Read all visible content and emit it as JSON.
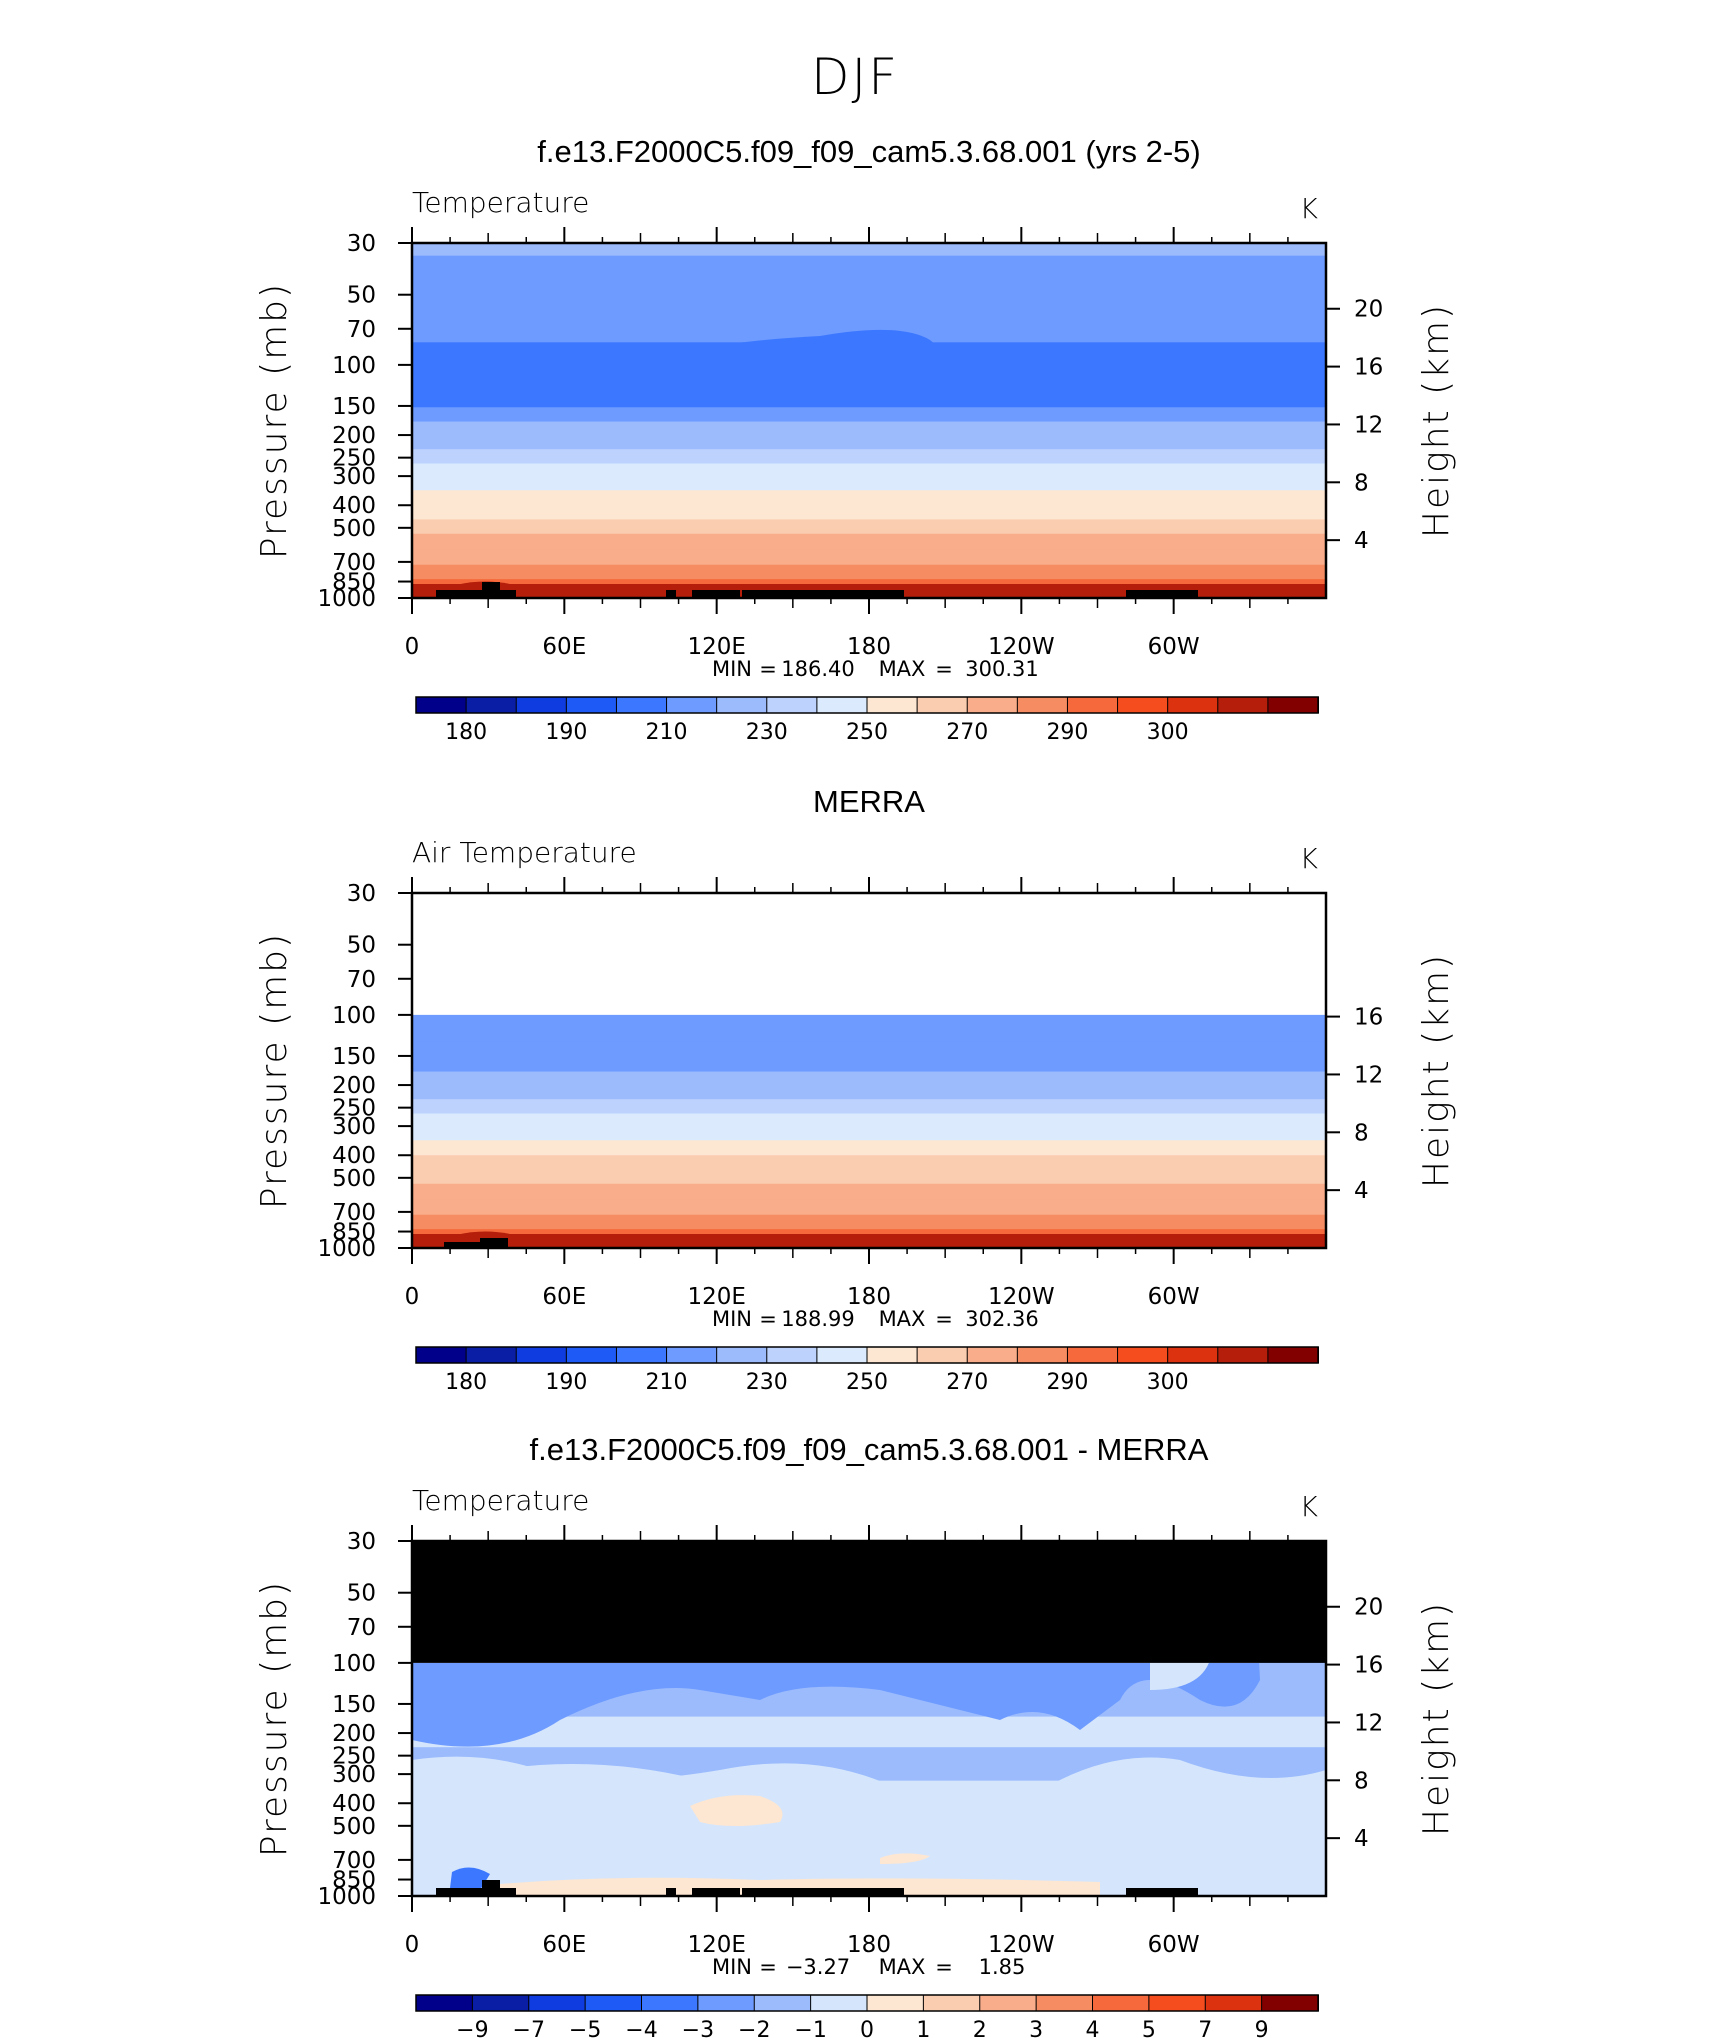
{
  "figure_title": "DJF",
  "colors": {
    "temp_palette": [
      "#00008b",
      "#0a1ea5",
      "#0f3ce0",
      "#1e5af5",
      "#3c78ff",
      "#6e9bff",
      "#9bbbfd",
      "#bdd2fd",
      "#dbebfd",
      "#fde6d2",
      "#fbcdb0",
      "#f9ad8a",
      "#f58c62",
      "#f5693c",
      "#f54d1e",
      "#dc320f",
      "#b41e0a",
      "#820000"
    ],
    "land_mask": "#000000"
  },
  "chart_data": [
    {
      "type": "heatmap",
      "title": "f.e13.F2000C5.f09_f09_cam5.3.68.001 (yrs 2-5)",
      "subtitle_left": "Temperature",
      "subtitle_right": "K",
      "xlabel": "",
      "ylabel": "Pressure (mb)",
      "ylabel_right": "Height (km)",
      "x_ticks": [
        "0",
        "60E",
        "120E",
        "180",
        "120W",
        "60W"
      ],
      "y_ticks": [
        30,
        50,
        70,
        100,
        150,
        200,
        250,
        300,
        400,
        500,
        700,
        850,
        1000
      ],
      "y_ticks_right": [
        4,
        8,
        12,
        16,
        20
      ],
      "y_scale": "log-pressure",
      "stats": {
        "min_label": "MIN",
        "min": "186.40",
        "max_label": "MAX",
        "max": "300.31"
      },
      "colorbar": {
        "labels": [
          "180",
          "190",
          "210",
          "230",
          "250",
          "270",
          "290",
          "300"
        ]
      },
      "bands": [
        {
          "p": 30,
          "v": 212
        },
        {
          "p": 34,
          "v": 207
        },
        {
          "p": 48,
          "v": 203
        },
        {
          "p": 80,
          "v": 199
        },
        {
          "p": 100,
          "v": 199
        },
        {
          "p": 140,
          "v": 199
        },
        {
          "p": 152,
          "v": 208
        },
        {
          "p": 175,
          "v": 212
        },
        {
          "p": 200,
          "v": 218
        },
        {
          "p": 230,
          "v": 224
        },
        {
          "p": 265,
          "v": 230
        },
        {
          "p": 300,
          "v": 236
        },
        {
          "p": 345,
          "v": 243
        },
        {
          "p": 400,
          "v": 249
        },
        {
          "p": 460,
          "v": 256
        },
        {
          "p": 530,
          "v": 262
        },
        {
          "p": 620,
          "v": 268
        },
        {
          "p": 720,
          "v": 274
        },
        {
          "p": 830,
          "v": 280
        },
        {
          "p": 930,
          "v": 287
        },
        {
          "p": 1000,
          "v": 295
        }
      ]
    },
    {
      "type": "heatmap",
      "title": "MERRA",
      "subtitle_left": "Air Temperature",
      "subtitle_right": "K",
      "xlabel": "",
      "ylabel": "Pressure (mb)",
      "ylabel_right": "Height (km)",
      "x_ticks": [
        "0",
        "60E",
        "120E",
        "180",
        "120W",
        "60W"
      ],
      "y_ticks": [
        30,
        50,
        70,
        100,
        150,
        200,
        250,
        300,
        400,
        500,
        700,
        850,
        1000
      ],
      "y_ticks_right": [
        4,
        8,
        12,
        16
      ],
      "y_scale": "log-pressure",
      "data_top_pressure": 100,
      "stats": {
        "min_label": "MIN",
        "min": "188.99",
        "max_label": "MAX",
        "max": "302.36"
      },
      "colorbar": {
        "labels": [
          "180",
          "190",
          "210",
          "230",
          "250",
          "270",
          "290",
          "300"
        ]
      },
      "bands": [
        {
          "p": 100,
          "v": 202
        },
        {
          "p": 130,
          "v": 205
        },
        {
          "p": 152,
          "v": 209
        },
        {
          "p": 175,
          "v": 213
        },
        {
          "p": 200,
          "v": 219
        },
        {
          "p": 230,
          "v": 225
        },
        {
          "p": 265,
          "v": 231
        },
        {
          "p": 300,
          "v": 237
        },
        {
          "p": 345,
          "v": 244
        },
        {
          "p": 400,
          "v": 250
        },
        {
          "p": 460,
          "v": 257
        },
        {
          "p": 530,
          "v": 263
        },
        {
          "p": 620,
          "v": 269
        },
        {
          "p": 720,
          "v": 275
        },
        {
          "p": 830,
          "v": 281
        },
        {
          "p": 930,
          "v": 288
        },
        {
          "p": 1000,
          "v": 296
        }
      ]
    },
    {
      "type": "heatmap",
      "title": "f.e13.F2000C5.f09_f09_cam5.3.68.001 - MERRA",
      "subtitle_left": "Temperature",
      "subtitle_right": "K",
      "xlabel": "",
      "ylabel": "Pressure (mb)",
      "ylabel_right": "Height (km)",
      "x_ticks": [
        "0",
        "60E",
        "120E",
        "180",
        "120W",
        "60W"
      ],
      "y_ticks": [
        30,
        50,
        70,
        100,
        150,
        200,
        250,
        300,
        400,
        500,
        700,
        850,
        1000
      ],
      "y_ticks_right": [
        4,
        8,
        12,
        16,
        20
      ],
      "y_scale": "log-pressure",
      "masked_above_pressure": 100,
      "stats": {
        "min_label": "MIN",
        "min": "−3.27",
        "max_label": "MAX",
        "max": "1.85"
      },
      "colorbar": {
        "labels": [
          "−9",
          "−7",
          "−5",
          "−4",
          "−3",
          "−2",
          "−1",
          "0",
          "1",
          "2",
          "3",
          "4",
          "5",
          "7",
          "9"
        ]
      },
      "bands": [
        {
          "p": 100,
          "v": -1.5
        },
        {
          "p": 135,
          "v": -1.2
        },
        {
          "p": 170,
          "v": -0.6
        },
        {
          "p": 230,
          "v": -1.1
        },
        {
          "p": 320,
          "v": -0.5
        },
        {
          "p": 420,
          "v": -0.4
        },
        {
          "p": 520,
          "v": -0.6
        },
        {
          "p": 620,
          "v": -0.4
        },
        {
          "p": 760,
          "v": -0.3
        },
        {
          "p": 900,
          "v": 0.3
        },
        {
          "p": 1000,
          "v": -0.2
        }
      ]
    }
  ]
}
